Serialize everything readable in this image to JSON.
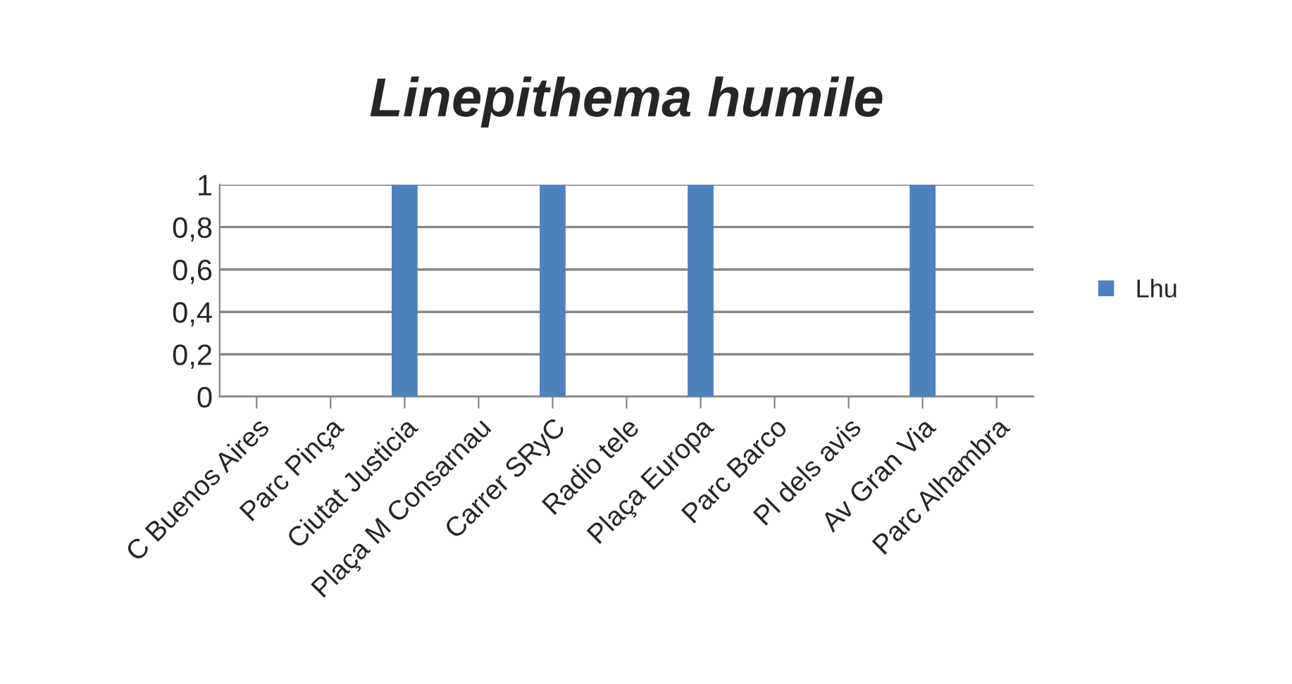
{
  "chart_data": {
    "type": "bar",
    "title": "Linepithema humile",
    "categories": [
      "C Buenos Aires",
      "Parc Pinça",
      "Ciutat Justicia",
      "Plaça M Consarnau",
      "Carrer SRyC",
      "Radio tele",
      "Plaça Europa",
      "Parc Barco",
      "Pl dels avis",
      "Av Gran Via",
      "Parc Alhambra"
    ],
    "series": [
      {
        "name": "Lhu",
        "color": "#4f81bd",
        "values": [
          0,
          0,
          1,
          0,
          1,
          0,
          1,
          0,
          0,
          1,
          0
        ]
      }
    ],
    "ylim": [
      0,
      1
    ],
    "yticks": [
      0,
      {
        "value": 0.2,
        "label": "0,2"
      },
      {
        "value": 0.4,
        "label": "0,4"
      },
      {
        "value": 0.6,
        "label": "0,6"
      },
      {
        "value": 0.8,
        "label": "0,8"
      },
      1
    ],
    "grid": "y",
    "legend": "right"
  }
}
